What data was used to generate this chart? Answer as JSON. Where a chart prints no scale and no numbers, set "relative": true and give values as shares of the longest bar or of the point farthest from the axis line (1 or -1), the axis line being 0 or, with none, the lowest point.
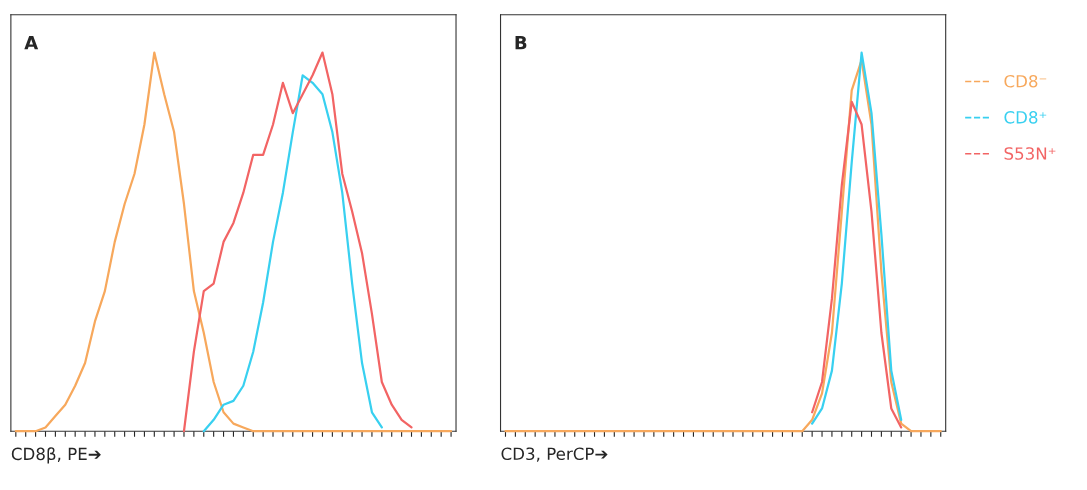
{
  "chart_data": [
    {
      "type": "line",
      "title": "A",
      "xlabel": "CD8β, PE➔",
      "relative": true,
      "legend": false,
      "categories": [
        null,
        null,
        null,
        null,
        null,
        null,
        null,
        null,
        null,
        null,
        null,
        null,
        null,
        null,
        null,
        null,
        null,
        null,
        null,
        null,
        null,
        null,
        null,
        null,
        null,
        null,
        null,
        null,
        null,
        null,
        null,
        null,
        null,
        null,
        null,
        null,
        null,
        null,
        null,
        null,
        null,
        null,
        null,
        null,
        null
      ],
      "series": [
        {
          "color": "#f7a85c",
          "values": [
            0,
            0,
            0,
            0.01,
            0.04,
            0.07,
            0.12,
            0.18,
            0.29,
            0.37,
            0.5,
            0.6,
            0.68,
            0.81,
            1.0,
            0.89,
            0.79,
            0.6,
            0.37,
            0.26,
            0.13,
            0.05,
            0.02,
            0.01,
            0,
            0,
            0,
            0,
            0,
            0,
            0,
            0,
            0,
            0,
            0,
            0,
            0,
            0,
            0,
            0,
            0,
            0,
            0,
            0,
            0
          ]
        },
        {
          "color": "#38d0f0",
          "values": [
            null,
            null,
            null,
            null,
            null,
            null,
            null,
            null,
            null,
            null,
            null,
            null,
            null,
            null,
            null,
            null,
            null,
            null,
            null,
            0,
            0.03,
            0.07,
            0.08,
            0.12,
            0.21,
            0.34,
            0.5,
            0.63,
            0.79,
            0.94,
            0.92,
            0.89,
            0.79,
            0.63,
            0.39,
            0.18,
            0.05,
            0.01,
            null,
            null,
            null,
            null,
            null,
            null,
            null
          ]
        },
        {
          "color": "#f26464",
          "values": [
            null,
            null,
            null,
            null,
            null,
            null,
            null,
            null,
            null,
            null,
            null,
            null,
            null,
            null,
            null,
            null,
            null,
            0,
            0.21,
            0.37,
            0.39,
            0.5,
            0.55,
            0.63,
            0.73,
            0.73,
            0.81,
            0.92,
            0.84,
            0.89,
            0.94,
            1.0,
            0.89,
            0.68,
            0.58,
            0.47,
            0.31,
            0.13,
            0.07,
            0.03,
            0.01,
            null,
            null,
            null,
            null
          ]
        }
      ]
    },
    {
      "type": "line",
      "title": "B",
      "xlabel": "CD3, PerCP➔",
      "relative": true,
      "legend": "right",
      "categories": [
        null,
        null,
        null,
        null,
        null,
        null,
        null,
        null,
        null,
        null,
        null,
        null,
        null,
        null,
        null,
        null,
        null,
        null,
        null,
        null,
        null,
        null,
        null,
        null,
        null,
        null,
        null,
        null,
        null,
        null,
        null,
        null,
        null,
        null,
        null,
        null,
        null,
        null,
        null,
        null,
        null,
        null,
        null,
        null,
        null
      ],
      "series": [
        {
          "name": "CD8⁻",
          "color": "#f7a85c",
          "values": [
            0,
            0,
            0,
            0,
            0,
            0,
            0,
            0,
            0,
            0,
            0,
            0,
            0,
            0,
            0,
            0,
            0,
            0,
            0,
            0,
            0,
            0,
            0,
            0,
            0,
            0,
            0,
            0,
            0,
            0,
            0,
            0.03,
            0.1,
            0.26,
            0.58,
            0.9,
            0.98,
            0.81,
            0.42,
            0.13,
            0.02,
            0,
            0,
            0,
            0
          ]
        },
        {
          "name": "CD8⁺",
          "color": "#38d0f0",
          "values": [
            null,
            null,
            null,
            null,
            null,
            null,
            null,
            null,
            null,
            null,
            null,
            null,
            null,
            null,
            null,
            null,
            null,
            null,
            null,
            null,
            null,
            null,
            null,
            null,
            null,
            null,
            null,
            null,
            null,
            null,
            null,
            0.02,
            0.06,
            0.16,
            0.39,
            0.71,
            1.0,
            0.84,
            0.52,
            0.16,
            0.03,
            null,
            null,
            null,
            null
          ]
        },
        {
          "name": "S53N⁺",
          "color": "#f26464",
          "values": [
            null,
            null,
            null,
            null,
            null,
            null,
            null,
            null,
            null,
            null,
            null,
            null,
            null,
            null,
            null,
            null,
            null,
            null,
            null,
            null,
            null,
            null,
            null,
            null,
            null,
            null,
            null,
            null,
            null,
            null,
            null,
            0.05,
            0.13,
            0.35,
            0.65,
            0.87,
            0.81,
            0.58,
            0.26,
            0.06,
            0.01,
            null,
            null,
            null,
            null
          ]
        }
      ]
    }
  ]
}
